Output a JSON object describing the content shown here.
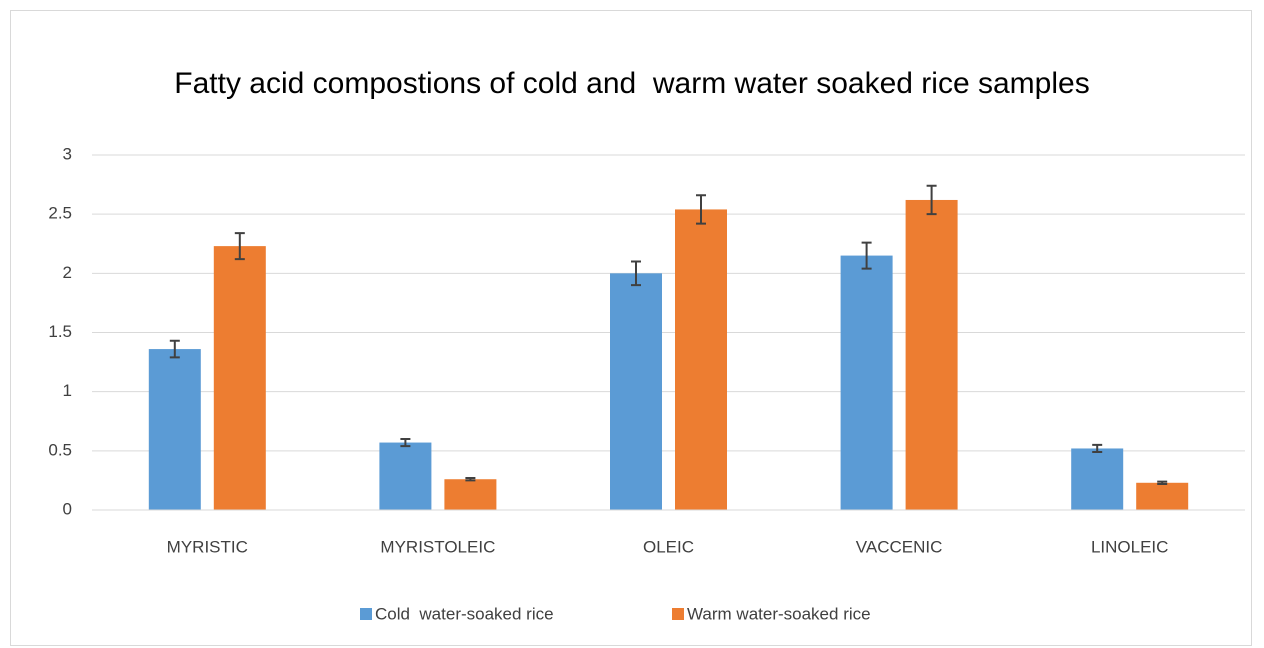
{
  "chart_data": {
    "type": "bar",
    "title": "Fatty acid compostions of cold and  warm water soaked rice samples",
    "categories": [
      "MYRISTIC",
      "MYRISTOLEIC",
      "OLEIC",
      "VACCENIC",
      "LINOLEIC"
    ],
    "series": [
      {
        "name": "Cold  water-soaked rice",
        "color": "#5b9bd5",
        "values": [
          1.36,
          0.57,
          2.0,
          2.15,
          0.52
        ],
        "errors": [
          0.07,
          0.03,
          0.1,
          0.11,
          0.03
        ]
      },
      {
        "name": "Warm water-soaked rice",
        "color": "#ed7d31",
        "values": [
          2.23,
          0.26,
          2.54,
          2.62,
          0.23
        ],
        "errors": [
          0.11,
          0.01,
          0.12,
          0.12,
          0.01
        ]
      }
    ],
    "ylim": [
      0,
      3
    ],
    "yticks": [
      0,
      0.5,
      1,
      1.5,
      2,
      2.5,
      3
    ],
    "grid": true,
    "legend": "bottom"
  }
}
